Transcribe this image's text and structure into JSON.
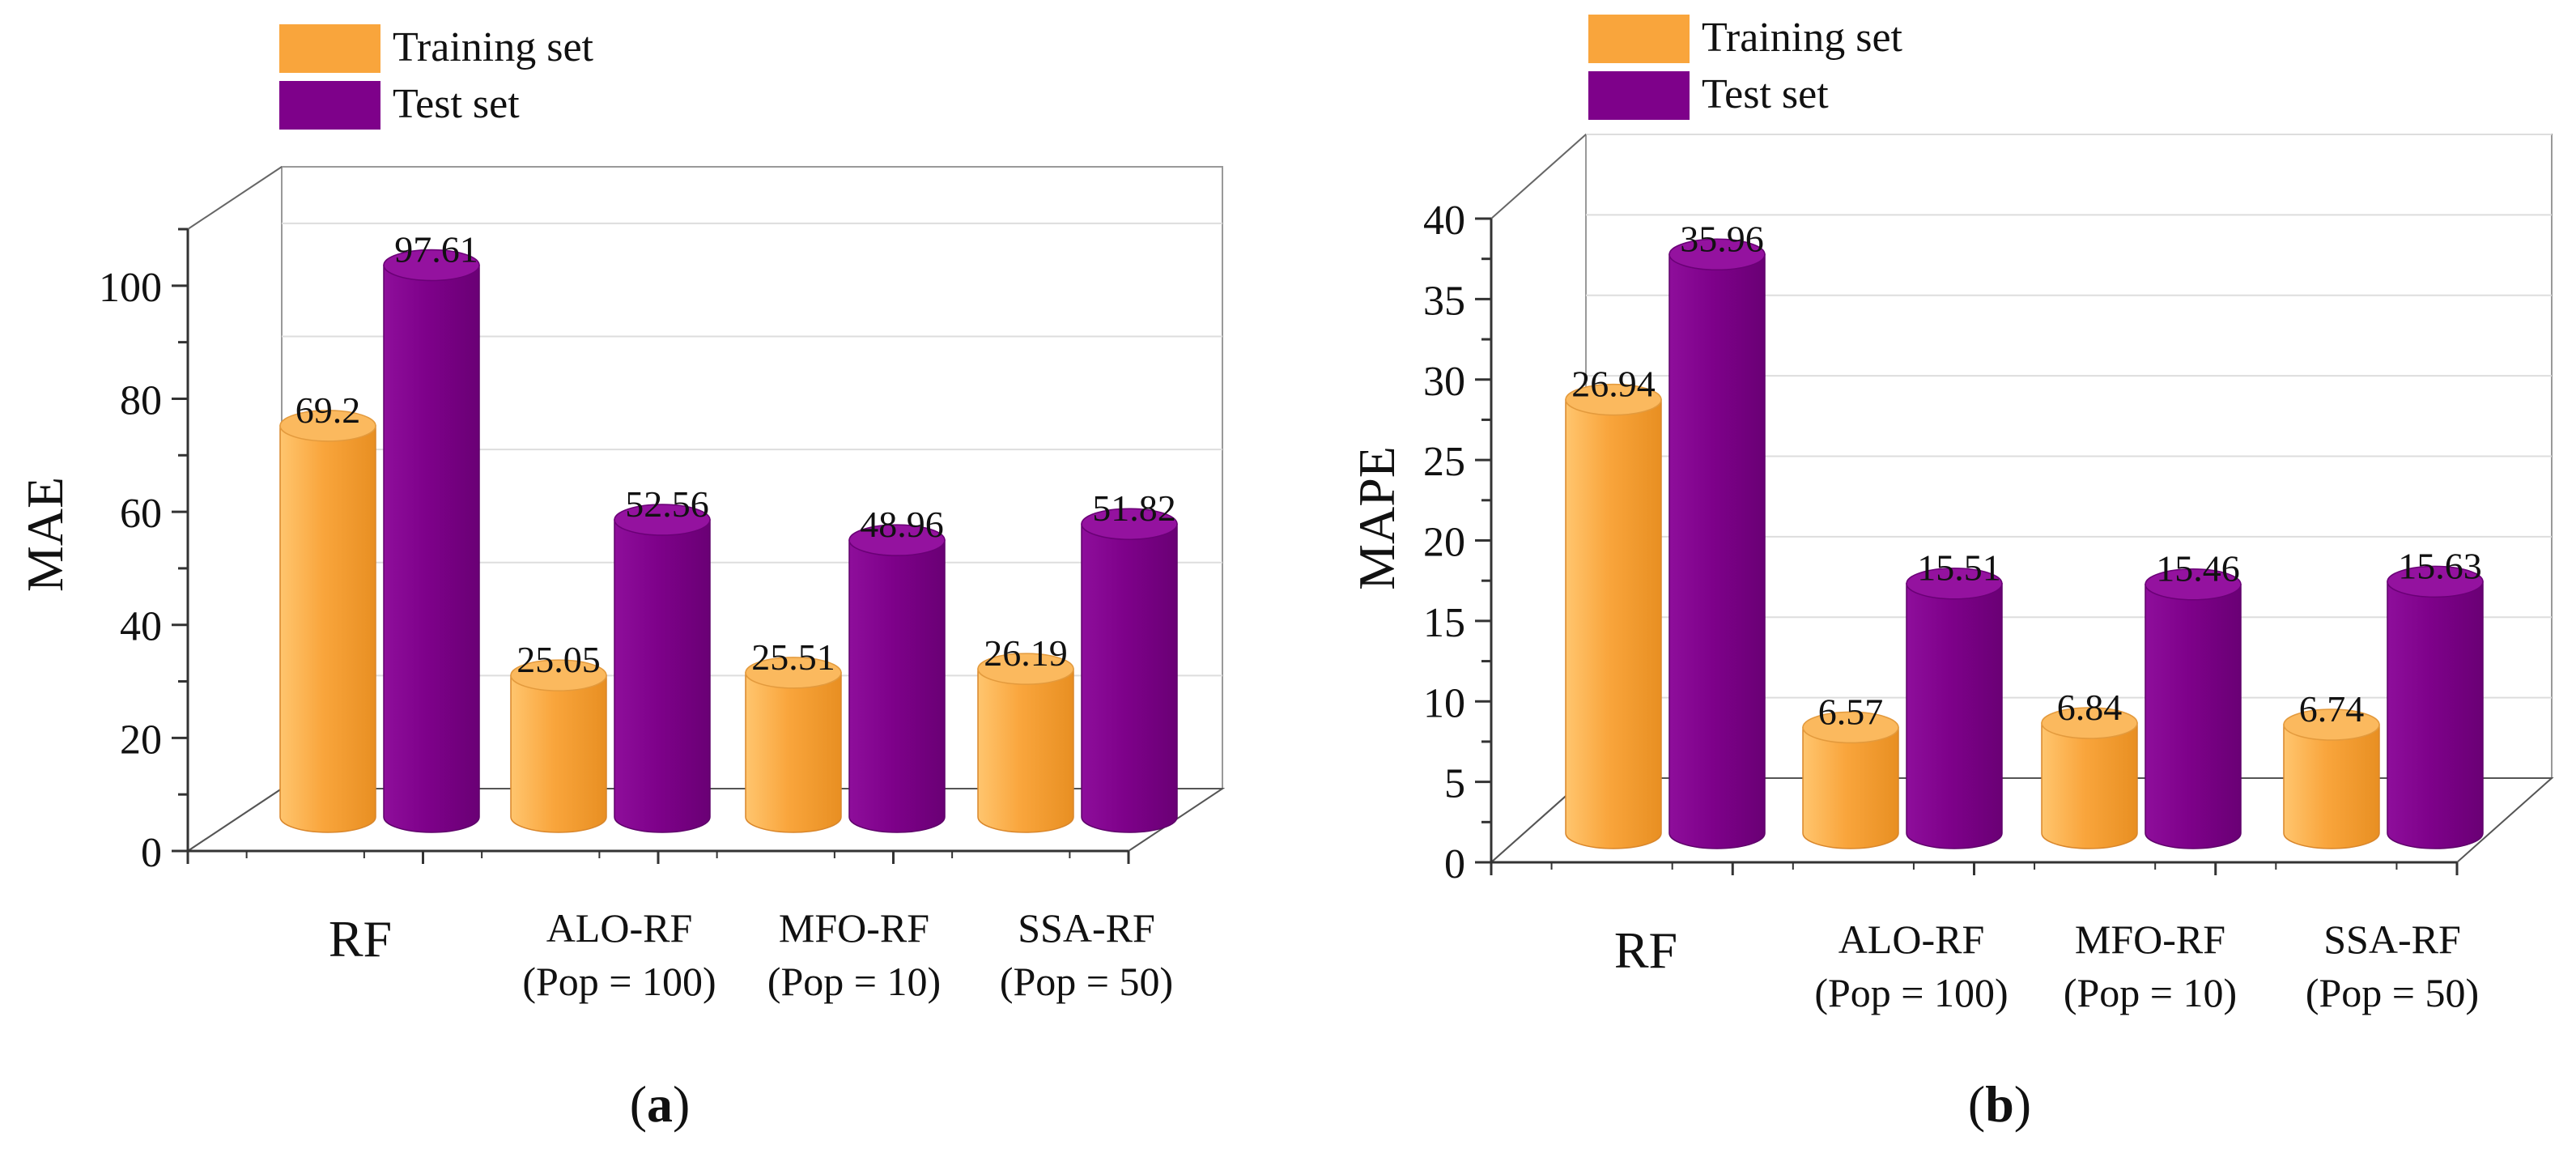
{
  "colors": {
    "training": "#F9A53C",
    "training_top": "#FBB95E",
    "test": "#7E018A",
    "test_top": "#94129F",
    "grid": "#DDDDDD",
    "frame": "#333333",
    "text": "#111111"
  },
  "legend": {
    "training_label": "Training set",
    "test_label": "Test set"
  },
  "chart_data": [
    {
      "type": "bar",
      "panel_label": "(a)",
      "panel_letter": "a",
      "title": "",
      "xlabel": "",
      "ylabel": "MAE",
      "ylim": [
        0,
        110
      ],
      "yticks": [
        0,
        20,
        40,
        60,
        80,
        100
      ],
      "minor_step": 10,
      "categories": [
        {
          "line1": "RF",
          "line2": ""
        },
        {
          "line1": "ALO-RF",
          "line2": "(Pop = 100)"
        },
        {
          "line1": "MFO-RF",
          "line2": "(Pop = 10)"
        },
        {
          "line1": "SSA-RF",
          "line2": "(Pop = 50)"
        }
      ],
      "series": [
        {
          "name": "Training set",
          "values": [
            69.2,
            25.05,
            25.51,
            26.19
          ],
          "labels": [
            "69.2",
            "25.05",
            "25.51",
            "26.19"
          ]
        },
        {
          "name": "Test set",
          "values": [
            97.61,
            52.56,
            48.96,
            51.82
          ],
          "labels": [
            "97.61",
            "52.56",
            "48.96",
            "51.82"
          ]
        }
      ]
    },
    {
      "type": "bar",
      "panel_label": "(b)",
      "panel_letter": "b",
      "title": "",
      "xlabel": "",
      "ylabel": "MAPE",
      "ylim": [
        0,
        40
      ],
      "yticks": [
        0,
        5,
        10,
        15,
        20,
        25,
        30,
        35,
        40
      ],
      "minor_step": 2.5,
      "categories": [
        {
          "line1": "RF",
          "line2": ""
        },
        {
          "line1": "ALO-RF",
          "line2": "(Pop = 100)"
        },
        {
          "line1": "MFO-RF",
          "line2": "(Pop = 10)"
        },
        {
          "line1": "SSA-RF",
          "line2": "(Pop = 50)"
        }
      ],
      "series": [
        {
          "name": "Training set",
          "values": [
            26.94,
            6.57,
            6.84,
            6.74
          ],
          "labels": [
            "26.94",
            "6.57",
            "6.84",
            "6.74"
          ]
        },
        {
          "name": "Test set",
          "values": [
            35.96,
            15.51,
            15.46,
            15.63
          ],
          "labels": [
            "35.96",
            "15.51",
            "15.46",
            "15.63"
          ]
        }
      ]
    }
  ]
}
